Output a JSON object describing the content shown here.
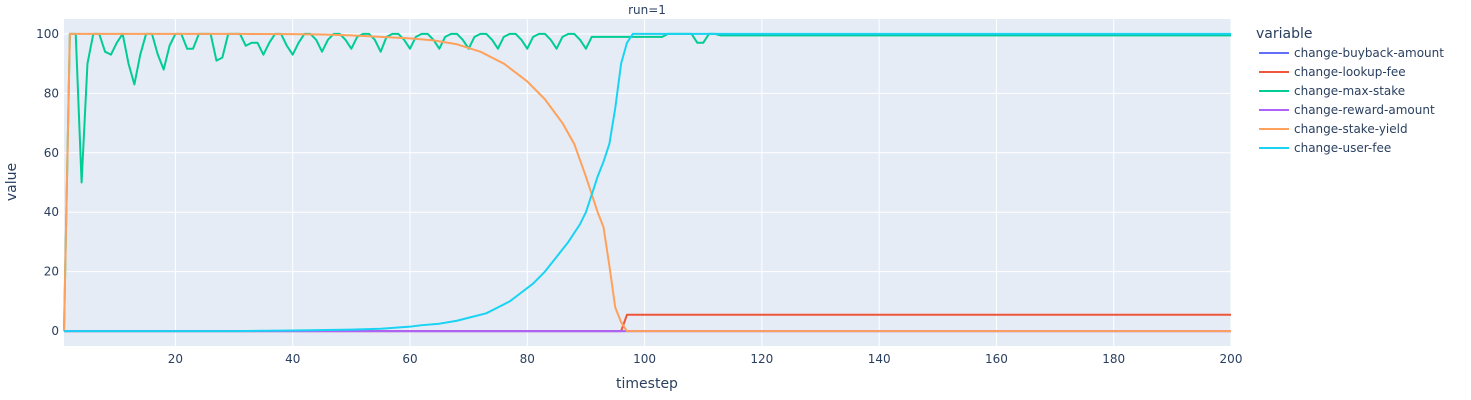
{
  "chart_data": {
    "type": "line",
    "title": "run=1",
    "xlabel": "timestep",
    "ylabel": "value",
    "xlim": [
      1,
      200
    ],
    "ylim": [
      -5,
      105
    ],
    "xticks": [
      20,
      40,
      60,
      80,
      100,
      120,
      140,
      160,
      180,
      200
    ],
    "yticks": [
      0,
      20,
      40,
      60,
      80,
      100
    ],
    "grid": true,
    "legend_title": "variable",
    "legend_position": "right",
    "series": [
      {
        "name": "change-buyback-amount",
        "color": "#636efa",
        "points": [
          [
            1,
            0
          ],
          [
            200,
            0
          ]
        ]
      },
      {
        "name": "change-lookup-fee",
        "color": "#ef553b",
        "points": [
          [
            1,
            0
          ],
          [
            96,
            0
          ],
          [
            97,
            5.5
          ],
          [
            200,
            5.5
          ]
        ]
      },
      {
        "name": "change-max-stake",
        "color": "#00cc96",
        "points": [
          [
            1,
            0
          ],
          [
            2,
            100
          ],
          [
            3,
            100
          ],
          [
            4,
            50
          ],
          [
            5,
            90
          ],
          [
            6,
            100
          ],
          [
            7,
            100
          ],
          [
            8,
            94
          ],
          [
            9,
            93
          ],
          [
            10,
            97
          ],
          [
            11,
            100
          ],
          [
            12,
            90
          ],
          [
            13,
            83
          ],
          [
            14,
            93
          ],
          [
            15,
            100
          ],
          [
            16,
            100
          ],
          [
            17,
            93
          ],
          [
            18,
            88
          ],
          [
            19,
            96
          ],
          [
            20,
            100
          ],
          [
            21,
            100
          ],
          [
            22,
            95
          ],
          [
            23,
            95
          ],
          [
            24,
            100
          ],
          [
            25,
            100
          ],
          [
            26,
            100
          ],
          [
            27,
            91
          ],
          [
            28,
            92
          ],
          [
            29,
            100
          ],
          [
            30,
            100
          ],
          [
            31,
            100
          ],
          [
            32,
            96
          ],
          [
            33,
            97
          ],
          [
            34,
            97
          ],
          [
            35,
            93
          ],
          [
            36,
            97
          ],
          [
            37,
            100
          ],
          [
            38,
            100
          ],
          [
            39,
            96
          ],
          [
            40,
            93
          ],
          [
            41,
            97
          ],
          [
            42,
            100
          ],
          [
            43,
            100
          ],
          [
            44,
            98
          ],
          [
            45,
            94
          ],
          [
            46,
            98
          ],
          [
            47,
            100
          ],
          [
            48,
            100
          ],
          [
            49,
            98
          ],
          [
            50,
            95
          ],
          [
            51,
            99
          ],
          [
            52,
            100
          ],
          [
            53,
            100
          ],
          [
            54,
            98
          ],
          [
            55,
            94
          ],
          [
            56,
            99
          ],
          [
            57,
            100
          ],
          [
            58,
            100
          ],
          [
            59,
            98
          ],
          [
            60,
            95
          ],
          [
            61,
            99
          ],
          [
            62,
            100
          ],
          [
            63,
            100
          ],
          [
            64,
            98
          ],
          [
            65,
            95
          ],
          [
            66,
            99
          ],
          [
            67,
            100
          ],
          [
            68,
            100
          ],
          [
            69,
            98
          ],
          [
            70,
            95
          ],
          [
            71,
            99
          ],
          [
            72,
            100
          ],
          [
            73,
            100
          ],
          [
            74,
            98
          ],
          [
            75,
            95
          ],
          [
            76,
            99
          ],
          [
            77,
            100
          ],
          [
            78,
            100
          ],
          [
            79,
            98
          ],
          [
            80,
            95
          ],
          [
            81,
            99
          ],
          [
            82,
            100
          ],
          [
            83,
            100
          ],
          [
            84,
            98
          ],
          [
            85,
            95
          ],
          [
            86,
            99
          ],
          [
            87,
            100
          ],
          [
            88,
            100
          ],
          [
            89,
            98
          ],
          [
            90,
            95
          ],
          [
            91,
            99
          ],
          [
            92,
            99
          ],
          [
            93,
            99
          ],
          [
            94,
            99
          ],
          [
            95,
            99
          ],
          [
            96,
            99
          ],
          [
            97,
            99
          ],
          [
            98,
            99
          ],
          [
            99,
            99
          ],
          [
            100,
            99
          ],
          [
            101,
            99
          ],
          [
            102,
            99
          ],
          [
            103,
            99
          ],
          [
            104,
            100
          ],
          [
            105,
            100
          ],
          [
            106,
            100
          ],
          [
            107,
            100
          ],
          [
            108,
            100
          ],
          [
            109,
            97
          ],
          [
            110,
            97
          ],
          [
            111,
            100
          ],
          [
            112,
            100
          ],
          [
            113,
            99.5
          ],
          [
            200,
            99.5
          ]
        ]
      },
      {
        "name": "change-reward-amount",
        "color": "#ab63fa",
        "points": [
          [
            1,
            0
          ],
          [
            200,
            0
          ]
        ]
      },
      {
        "name": "change-stake-yield",
        "color": "#ffa15a",
        "points": [
          [
            1,
            0
          ],
          [
            2,
            100
          ],
          [
            10,
            100
          ],
          [
            20,
            100
          ],
          [
            30,
            100
          ],
          [
            40,
            99.9
          ],
          [
            45,
            99.8
          ],
          [
            50,
            99.5
          ],
          [
            55,
            99
          ],
          [
            60,
            98.5
          ],
          [
            64,
            97.8
          ],
          [
            68,
            96.5
          ],
          [
            72,
            94
          ],
          [
            76,
            90
          ],
          [
            80,
            84
          ],
          [
            83,
            78
          ],
          [
            86,
            70
          ],
          [
            88,
            63
          ],
          [
            90,
            52
          ],
          [
            91,
            46
          ],
          [
            92,
            40
          ],
          [
            93,
            35
          ],
          [
            94,
            22
          ],
          [
            95,
            8
          ],
          [
            96,
            3
          ],
          [
            97,
            0
          ],
          [
            200,
            0
          ]
        ]
      },
      {
        "name": "change-user-fee",
        "color": "#19d3f3",
        "points": [
          [
            1,
            0
          ],
          [
            30,
            0
          ],
          [
            40,
            0.2
          ],
          [
            50,
            0.5
          ],
          [
            55,
            0.8
          ],
          [
            60,
            1.5
          ],
          [
            62,
            2
          ],
          [
            65,
            2.5
          ],
          [
            68,
            3.5
          ],
          [
            70,
            4.5
          ],
          [
            73,
            6
          ],
          [
            75,
            8
          ],
          [
            77,
            10
          ],
          [
            79,
            13
          ],
          [
            81,
            16
          ],
          [
            83,
            20
          ],
          [
            85,
            25
          ],
          [
            87,
            30
          ],
          [
            89,
            36
          ],
          [
            90,
            40
          ],
          [
            91,
            46
          ],
          [
            92,
            52
          ],
          [
            93,
            57
          ],
          [
            94,
            63
          ],
          [
            95,
            75
          ],
          [
            96,
            90
          ],
          [
            97,
            97
          ],
          [
            98,
            100
          ],
          [
            200,
            100
          ]
        ]
      }
    ]
  }
}
